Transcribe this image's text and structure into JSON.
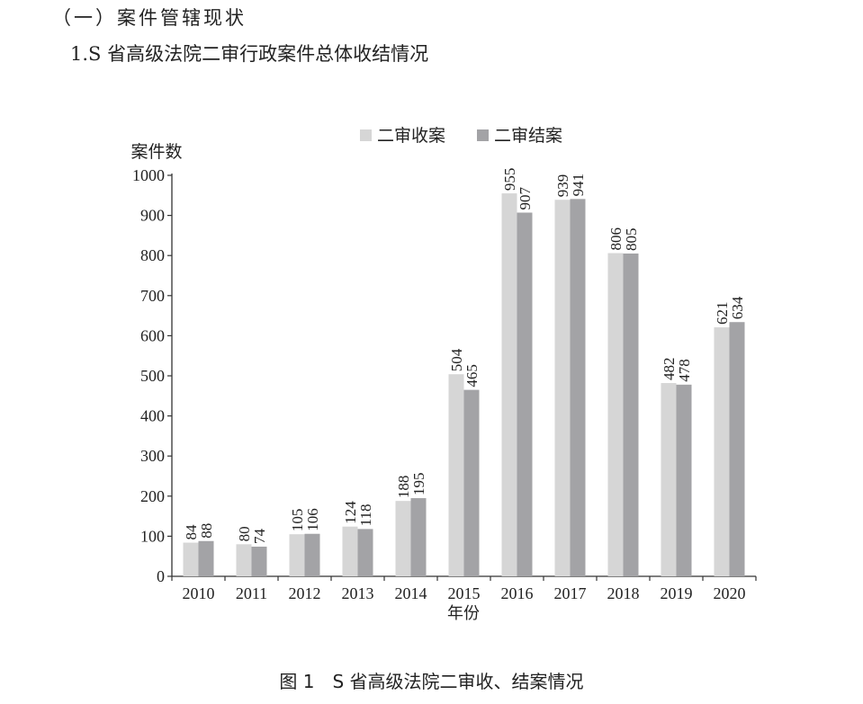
{
  "section_heading": "（一）案件管辖现状",
  "subsection_heading": "1.S 省高级法院二审行政案件总体收结情况",
  "figure_caption": "图 1　S 省高级法院二审收、结案情况",
  "chart_data": {
    "type": "bar",
    "title": "",
    "xlabel": "年份",
    "ylabel": "案件数",
    "ylim": [
      0,
      1000
    ],
    "yticks": [
      0,
      100,
      200,
      300,
      400,
      500,
      600,
      700,
      800,
      900,
      1000
    ],
    "grid": false,
    "legend_position": "top",
    "categories": [
      "2010",
      "2011",
      "2012",
      "2013",
      "2014",
      "2015",
      "2016",
      "2017",
      "2018",
      "2019",
      "2020"
    ],
    "series": [
      {
        "name": "二审收案",
        "color": "#d6d6d6",
        "values": [
          84,
          80,
          105,
          124,
          188,
          504,
          955,
          939,
          806,
          482,
          621
        ]
      },
      {
        "name": "二审结案",
        "color": "#a3a3a6",
        "values": [
          88,
          74,
          106,
          118,
          195,
          465,
          907,
          941,
          805,
          478,
          634
        ]
      }
    ]
  }
}
